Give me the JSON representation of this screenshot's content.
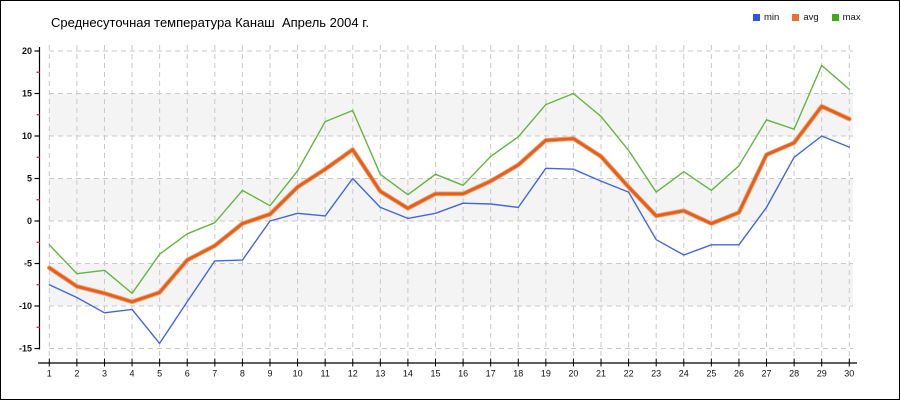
{
  "title": "Среднесуточная температура Канаш  Апрель 2004 г.",
  "legend": {
    "items": [
      {
        "label": "min",
        "color": "#2e55dd"
      },
      {
        "label": "avg",
        "color": "#e87030"
      },
      {
        "label": "max",
        "color": "#43a81c"
      }
    ]
  },
  "chart_data": {
    "type": "line",
    "title": "Среднесуточная температура Канаш  Апрель 2004 г.",
    "xlabel": "",
    "ylabel": "",
    "categories": [
      "1",
      "2",
      "3",
      "4",
      "5",
      "6",
      "7",
      "8",
      "9",
      "10",
      "11",
      "12",
      "13",
      "14",
      "15",
      "16",
      "17",
      "18",
      "19",
      "20",
      "21",
      "22",
      "23",
      "24",
      "25",
      "26",
      "27",
      "28",
      "29",
      "30"
    ],
    "series": [
      {
        "name": "max",
        "color": "#63b63e",
        "width": 1.4,
        "values": [
          -2.8,
          -6.2,
          -5.8,
          -8.5,
          -3.9,
          -1.5,
          -0.2,
          3.6,
          1.8,
          5.9,
          11.7,
          13.0,
          5.5,
          3.1,
          5.5,
          4.2,
          7.6,
          9.9,
          13.7,
          15.0,
          12.3,
          8.3,
          3.4,
          5.8,
          3.6,
          6.5,
          11.9,
          10.8,
          18.3,
          15.5
        ]
      },
      {
        "name": "min",
        "color": "#4466d9",
        "width": 1.4,
        "values": [
          -7.5,
          -9.0,
          -10.8,
          -10.4,
          -14.4,
          -9.5,
          -4.7,
          -4.6,
          0.0,
          0.9,
          0.6,
          5.0,
          1.6,
          0.3,
          0.9,
          2.1,
          2.0,
          1.6,
          6.2,
          6.1,
          4.7,
          3.4,
          -2.2,
          -4.0,
          -2.8,
          -2.8,
          1.6,
          7.5,
          10.0,
          8.7
        ]
      },
      {
        "name": "avg",
        "color": "#e2601c",
        "halo": "#f2a171",
        "width": 2.8,
        "values": [
          -5.5,
          -7.7,
          -8.5,
          -9.5,
          -8.4,
          -4.6,
          -2.9,
          -0.3,
          0.8,
          4.0,
          6.1,
          8.4,
          3.5,
          1.5,
          3.2,
          3.2,
          4.7,
          6.6,
          9.5,
          9.7,
          7.6,
          4.0,
          0.6,
          1.2,
          -0.3,
          1.0,
          7.8,
          9.2,
          13.5,
          12.0
        ]
      }
    ],
    "ylim": [
      -15,
      20
    ],
    "yticks": [
      20,
      15,
      10,
      5,
      0,
      -5,
      -10,
      -15
    ],
    "minor_yticks": [
      17.5,
      12.5,
      7.5,
      2.5,
      -2.5,
      -7.5,
      -12.5
    ],
    "minor_tick_color": "#cc2222",
    "grid": true,
    "grid_color": "#c9c9c9",
    "bands": [
      [
        15,
        10
      ],
      [
        5,
        0
      ],
      [
        -5,
        -10
      ]
    ],
    "band_color": "#f4f4f4",
    "legend_position": "top-right"
  }
}
